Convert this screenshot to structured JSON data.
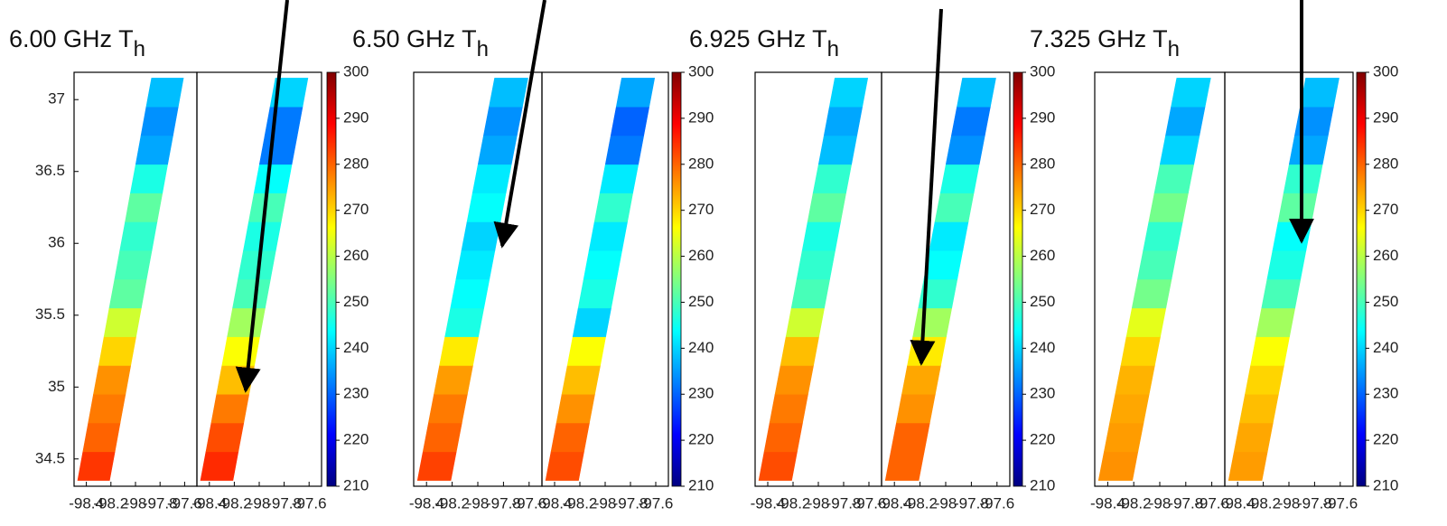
{
  "chart_data": [
    {
      "type": "swath",
      "title": "6.00 GHz T",
      "title_subscript": "h",
      "colormap": "jet",
      "ylim": [
        34.31,
        37.19
      ],
      "yticks": [
        34.5,
        35,
        35.5,
        36,
        36.5,
        37
      ],
      "xlim": [
        -98.5,
        -97.5
      ],
      "xticks": [
        -98.4,
        -98.2,
        -98,
        -97.8,
        -97.6
      ],
      "clim": [
        210,
        300
      ],
      "cticks": [
        210,
        220,
        230,
        240,
        250,
        260,
        270,
        280,
        290,
        300
      ],
      "lat": [
        34.45,
        34.65,
        34.85,
        35.05,
        35.25,
        35.45,
        35.65,
        35.85,
        36.05,
        36.25,
        36.45,
        36.65,
        36.85,
        37.05
      ],
      "series": [
        {
          "values": [
            284,
            280,
            278,
            276,
            270,
            262,
            252,
            250,
            248,
            252,
            246,
            236,
            234,
            238
          ]
        },
        {
          "values": [
            285,
            282,
            278,
            272,
            266,
            258,
            250,
            248,
            246,
            250,
            244,
            232,
            232,
            240
          ]
        }
      ]
    },
    {
      "type": "swath",
      "title": "6.50 GHz T",
      "title_subscript": "h",
      "colormap": "jet",
      "ylim": [
        34.31,
        37.19
      ],
      "xlim": [
        -98.5,
        -97.5
      ],
      "xticks": [
        -98.4,
        -98.2,
        -98,
        -97.8,
        -97.6
      ],
      "clim": [
        210,
        300
      ],
      "cticks": [
        210,
        220,
        230,
        240,
        250,
        260,
        270,
        280,
        290,
        300
      ],
      "lat": [
        34.45,
        34.65,
        34.85,
        35.05,
        35.25,
        35.45,
        35.65,
        35.85,
        36.05,
        36.25,
        36.45,
        36.65,
        36.85,
        37.05
      ],
      "series": [
        {
          "values": [
            283,
            280,
            278,
            275,
            268,
            246,
            244,
            242,
            240,
            244,
            242,
            236,
            234,
            238
          ]
        },
        {
          "values": [
            282,
            280,
            276,
            272,
            266,
            240,
            246,
            244,
            242,
            248,
            242,
            232,
            230,
            236
          ]
        }
      ]
    },
    {
      "type": "swath",
      "title": "6.925 GHz T",
      "title_subscript": "h",
      "colormap": "jet",
      "ylim": [
        34.31,
        37.19
      ],
      "xlim": [
        -98.5,
        -97.5
      ],
      "xticks": [
        -98.4,
        -98.2,
        -98,
        -97.8,
        -97.6
      ],
      "clim": [
        210,
        300
      ],
      "cticks": [
        210,
        220,
        230,
        240,
        250,
        260,
        270,
        280,
        290,
        300
      ],
      "lat": [
        34.45,
        34.65,
        34.85,
        35.05,
        35.25,
        35.45,
        35.65,
        35.85,
        36.05,
        36.25,
        36.45,
        36.65,
        36.85,
        37.05
      ],
      "series": [
        {
          "values": [
            282,
            280,
            278,
            276,
            272,
            262,
            250,
            248,
            246,
            252,
            248,
            238,
            236,
            240
          ]
        },
        {
          "values": [
            280,
            280,
            276,
            274,
            268,
            258,
            248,
            244,
            242,
            250,
            246,
            234,
            232,
            238
          ]
        }
      ]
    },
    {
      "type": "swath",
      "title": "7.325 GHz T",
      "title_subscript": "h",
      "colormap": "jet",
      "ylim": [
        34.31,
        37.19
      ],
      "xlim": [
        -98.5,
        -97.5
      ],
      "xticks": [
        -98.4,
        -98.2,
        -98,
        -97.8,
        -97.6
      ],
      "clim": [
        210,
        300
      ],
      "cticks": [
        210,
        220,
        230,
        240,
        250,
        260,
        270,
        280,
        290,
        300
      ],
      "lat": [
        34.45,
        34.65,
        34.85,
        35.05,
        35.25,
        35.45,
        35.65,
        35.85,
        36.05,
        36.25,
        36.45,
        36.65,
        36.85,
        37.05
      ],
      "series": [
        {
          "values": [
            276,
            275,
            274,
            273,
            270,
            264,
            254,
            250,
            248,
            254,
            250,
            240,
            236,
            240
          ]
        },
        {
          "values": [
            275,
            274,
            272,
            270,
            266,
            258,
            250,
            246,
            244,
            252,
            248,
            236,
            234,
            238
          ]
        }
      ]
    }
  ]
}
